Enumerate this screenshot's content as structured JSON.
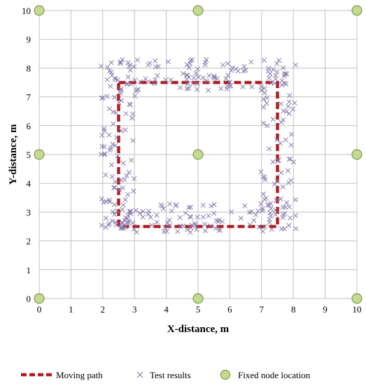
{
  "chart_data": {
    "type": "scatter",
    "xlabel": "X-distance, m",
    "ylabel": "Y-distance, m",
    "xlim": [
      0,
      10
    ],
    "ylim": [
      0,
      10
    ],
    "xticks": [
      "0",
      "1",
      "2",
      "3",
      "4",
      "5",
      "6",
      "7",
      "8",
      "9",
      "10"
    ],
    "yticks": [
      "0",
      "1",
      "2",
      "3",
      "4",
      "5",
      "6",
      "7",
      "8",
      "9",
      "10"
    ],
    "grid": true,
    "legend_position": "bottom",
    "colors": {
      "path": "#b01e23",
      "test": "#8a7cae",
      "node_fill": "#c3da8f",
      "node_stroke": "#6e8a3a",
      "grid": "#c0c0c0"
    },
    "series": [
      {
        "name": "Moving path",
        "style": "dashed-line",
        "x": [
          2.5,
          7.5,
          7.5,
          2.5,
          2.5
        ],
        "y": [
          7.5,
          7.5,
          2.5,
          2.5,
          7.5
        ]
      },
      {
        "name": "Test results",
        "style": "x-marker",
        "x": [],
        "y": []
      },
      {
        "name": "Fixed node location",
        "style": "circle-marker",
        "x": [
          0,
          5,
          10,
          0,
          5,
          10,
          0,
          5,
          10
        ],
        "y": [
          10,
          10,
          10,
          5,
          5,
          5,
          0,
          0,
          0
        ]
      }
    ],
    "test_results_regions": [
      {
        "side": "top",
        "x": [
          2.1,
          7.9
        ],
        "y": [
          7.2,
          8.3
        ],
        "count": 100
      },
      {
        "side": "bottom",
        "x": [
          2.1,
          7.9
        ],
        "y": [
          2.3,
          3.3
        ],
        "count": 100
      },
      {
        "side": "left",
        "x": [
          1.95,
          3.05
        ],
        "y": [
          2.4,
          8.2
        ],
        "count": 80
      },
      {
        "side": "right",
        "x": [
          6.95,
          8.1
        ],
        "y": [
          2.4,
          8.2
        ],
        "count": 80
      }
    ]
  }
}
